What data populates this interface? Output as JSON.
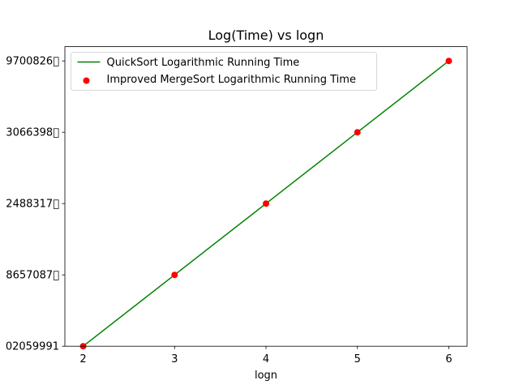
{
  "chart_data": {
    "type": "line",
    "title": "Log(Time) vs logn",
    "xlabel": "logn",
    "ylabel": "",
    "xlim": [
      1.8,
      6.2
    ],
    "ylim": [
      1,
      5.2
    ],
    "x_ticks": [
      2,
      3,
      4,
      5,
      6
    ],
    "y_ticks": [
      {
        "value": 1,
        "label": "02059991"
      },
      {
        "value": 2,
        "label": "8657087\u0000"
      },
      {
        "value": 3,
        "label": "2488317\u0000"
      },
      {
        "value": 4,
        "label": "3066398\u0000"
      },
      {
        "value": 5,
        "label": "9700826\u0000"
      }
    ],
    "legend_position": "upper-left",
    "series": [
      {
        "name": "QuickSort Logarithmic Running Time",
        "kind": "line",
        "color": "#008000",
        "x": [
          2,
          3,
          4,
          5,
          6
        ],
        "y": [
          1,
          2,
          3,
          4,
          5
        ]
      },
      {
        "name": "Improved MergeSort Logarithmic Running Time",
        "kind": "scatter",
        "color": "#ff0000",
        "x": [
          2,
          3,
          4,
          5,
          6
        ],
        "y": [
          1,
          2,
          3,
          4,
          5
        ]
      }
    ]
  }
}
